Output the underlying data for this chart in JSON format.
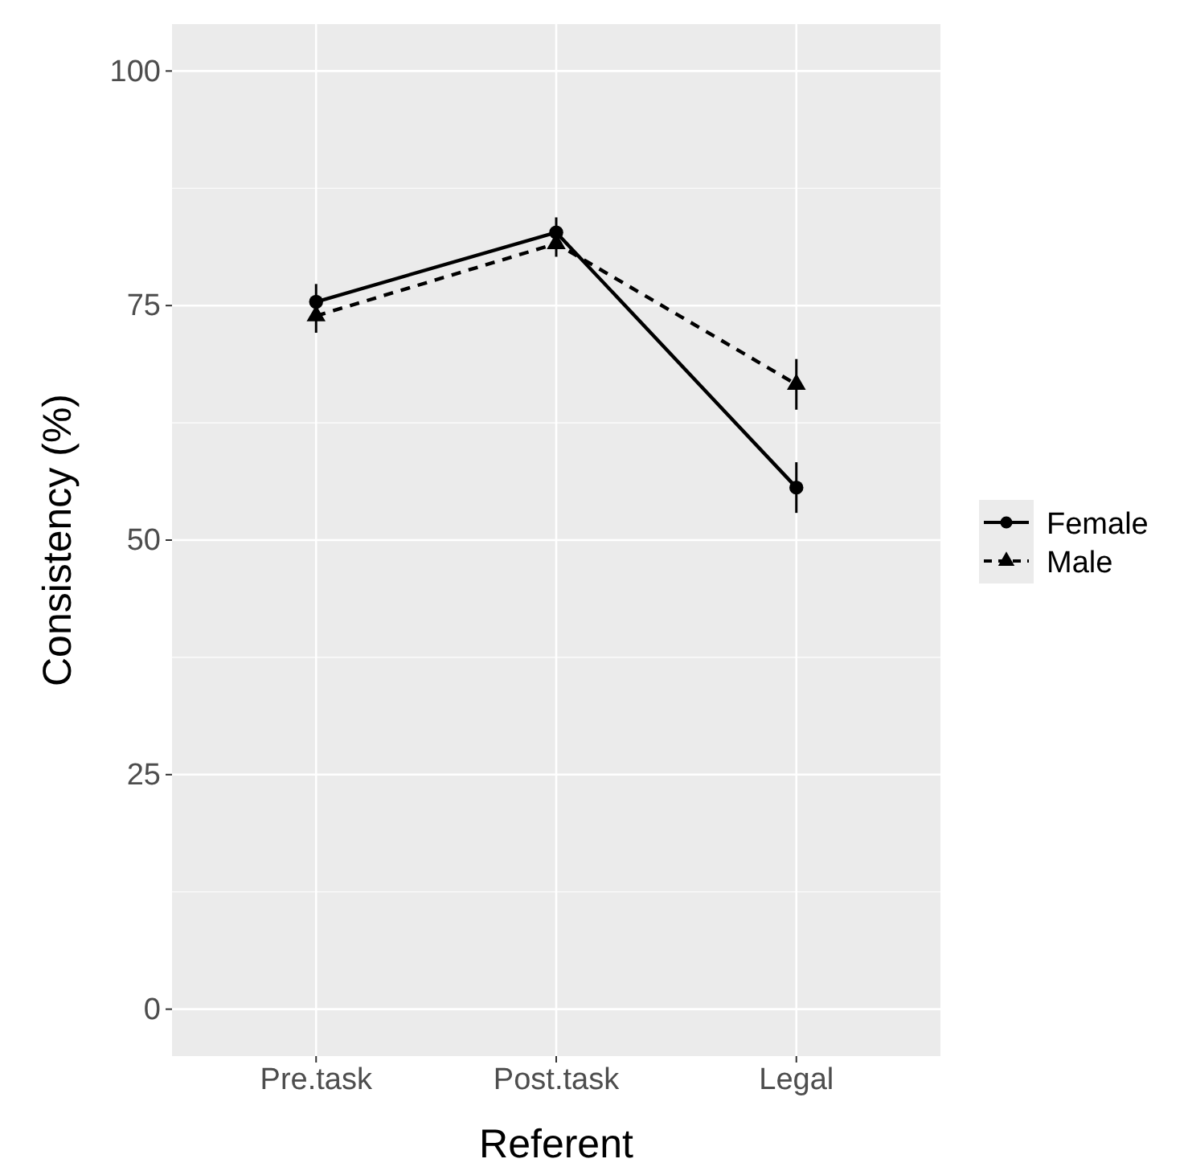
{
  "chart_data": {
    "type": "line",
    "xlabel": "Referent",
    "ylabel": "Consistency (%)",
    "categories": [
      "Pre.task",
      "Post.task",
      "Legal"
    ],
    "ylim": [
      -5,
      105
    ],
    "yticks": [
      0,
      25,
      50,
      75,
      100
    ],
    "grid": true,
    "legend": "right",
    "series": [
      {
        "name": "Female",
        "color": "#000000",
        "marker": "circle",
        "line_style": "solid",
        "values": [
          75.4,
          82.8,
          55.6
        ],
        "errors": [
          1.9,
          1.6,
          2.7
        ]
      },
      {
        "name": "Male",
        "color": "#000000",
        "marker": "triangle",
        "line_style": "dashed",
        "values": [
          73.9,
          81.6,
          66.6
        ],
        "errors": [
          1.8,
          1.4,
          2.7
        ]
      }
    ]
  }
}
